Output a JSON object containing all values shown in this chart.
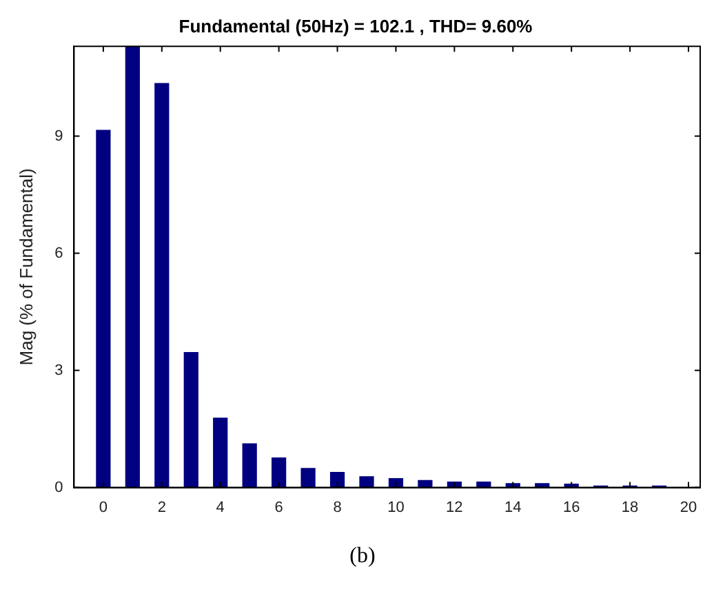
{
  "chart_data": {
    "type": "bar",
    "title": "Fundamental (50Hz) = 102.1 , THD= 9.60%",
    "ylabel": "Mag (% of Fundamental)",
    "x": [
      0,
      1,
      2,
      3,
      4,
      5,
      6,
      7,
      8,
      9,
      10,
      11,
      12,
      13,
      14,
      15,
      16,
      17,
      18,
      19
    ],
    "values": [
      9.16,
      11.3,
      10.36,
      3.47,
      1.79,
      1.13,
      0.77,
      0.5,
      0.4,
      0.29,
      0.24,
      0.19,
      0.15,
      0.15,
      0.11,
      0.11,
      0.1,
      0.05,
      0.05,
      0.05
    ],
    "color": "#000080",
    "xlim": [
      -1,
      20.4
    ],
    "xticks": [
      0,
      2,
      4,
      6,
      8,
      10,
      12,
      14,
      16,
      18,
      20
    ],
    "ylim": [
      0,
      11.3
    ],
    "yticks": [
      0,
      3,
      6,
      9
    ],
    "grid": false,
    "legend": false,
    "annotations": [
      "(b)"
    ]
  }
}
